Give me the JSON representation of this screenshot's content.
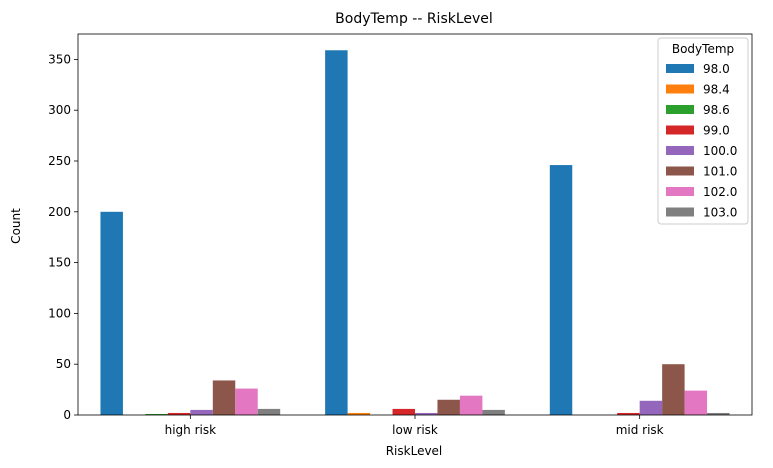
{
  "chart_data": {
    "type": "bar",
    "title": "BodyTemp -- RiskLevel",
    "xlabel": "RiskLevel",
    "ylabel": "Count",
    "categories": [
      "high risk",
      "low risk",
      "mid risk"
    ],
    "ylim": [
      0,
      375
    ],
    "yticks": [
      0,
      50,
      100,
      150,
      200,
      250,
      300,
      350
    ],
    "grid": false,
    "legend": {
      "title": "BodyTemp",
      "placement": "top-right"
    },
    "series": [
      {
        "name": "98.0",
        "color": "#1f77b4",
        "values": [
          200,
          359,
          246
        ]
      },
      {
        "name": "98.4",
        "color": "#ff7f0e",
        "values": [
          0,
          2,
          0
        ]
      },
      {
        "name": "98.6",
        "color": "#2ca02c",
        "values": [
          1,
          0,
          0
        ]
      },
      {
        "name": "99.0",
        "color": "#d62728",
        "values": [
          2,
          6,
          2
        ]
      },
      {
        "name": "100.0",
        "color": "#9467bd",
        "values": [
          5,
          2,
          14
        ]
      },
      {
        "name": "101.0",
        "color": "#8c564b",
        "values": [
          34,
          15,
          50
        ]
      },
      {
        "name": "102.0",
        "color": "#e377c2",
        "values": [
          26,
          19,
          24
        ]
      },
      {
        "name": "103.0",
        "color": "#7f7f7f",
        "values": [
          6,
          5,
          2
        ]
      }
    ]
  }
}
